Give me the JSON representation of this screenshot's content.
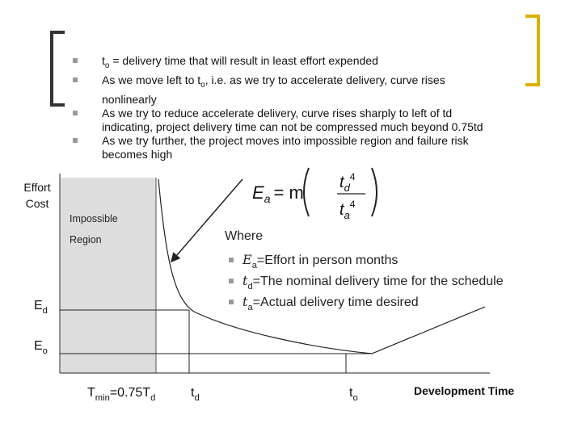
{
  "bullets": [
    [
      {
        "text": "t"
      },
      {
        "sub": "o"
      },
      {
        "text": " = delivery time that will result in least effort expended"
      }
    ],
    [
      {
        "text": "As we move left to t"
      },
      {
        "sub": "o"
      },
      {
        "text": ", i.e. as we try to accelerate delivery, curve rises nonlinearly"
      }
    ],
    [
      {
        "text": "As we try to reduce accelerate delivery, curve rises sharply to left of td indicating, project delivery time can not be compressed much beyond 0.75td"
      }
    ],
    [
      {
        "text": "As we try further, the project moves into impossible region and failure risk becomes high"
      }
    ]
  ],
  "y_axis_label": [
    "Effort",
    "Cost"
  ],
  "region_label": [
    "Impossible",
    "Region"
  ],
  "formula": {
    "lhs": "E",
    "lhs_sub": "a",
    "eq": "= m",
    "num": "t",
    "num_sub": "d",
    "num_pow": "4",
    "den": "t",
    "den_sub": "a",
    "den_pow": "4"
  },
  "where": {
    "title": "Where",
    "items": [
      [
        {
          "var": "E"
        },
        {
          "sub": "a"
        },
        {
          "text": "=Effort in person months"
        }
      ],
      [
        {
          "var": "t"
        },
        {
          "sub": "d"
        },
        {
          "text": "=The nominal delivery time for the schedule"
        }
      ],
      [
        {
          "var": "t"
        },
        {
          "sub": "a"
        },
        {
          "text": "=Actual delivery time desired"
        }
      ]
    ]
  },
  "levels": [
    [
      {
        "text": "E"
      },
      {
        "sub": "d"
      }
    ],
    [
      {
        "text": "E"
      },
      {
        "sub": "o"
      }
    ]
  ],
  "x_marks": [
    [
      {
        "text": "T"
      },
      {
        "sub": "min"
      },
      {
        "text": "=0.75T"
      },
      {
        "sub": "d"
      }
    ],
    [
      {
        "text": "t"
      },
      {
        "sub": "d"
      }
    ],
    [
      {
        "text": "t"
      },
      {
        "sub": "o"
      }
    ]
  ],
  "x_axis_label": "Development Time"
}
